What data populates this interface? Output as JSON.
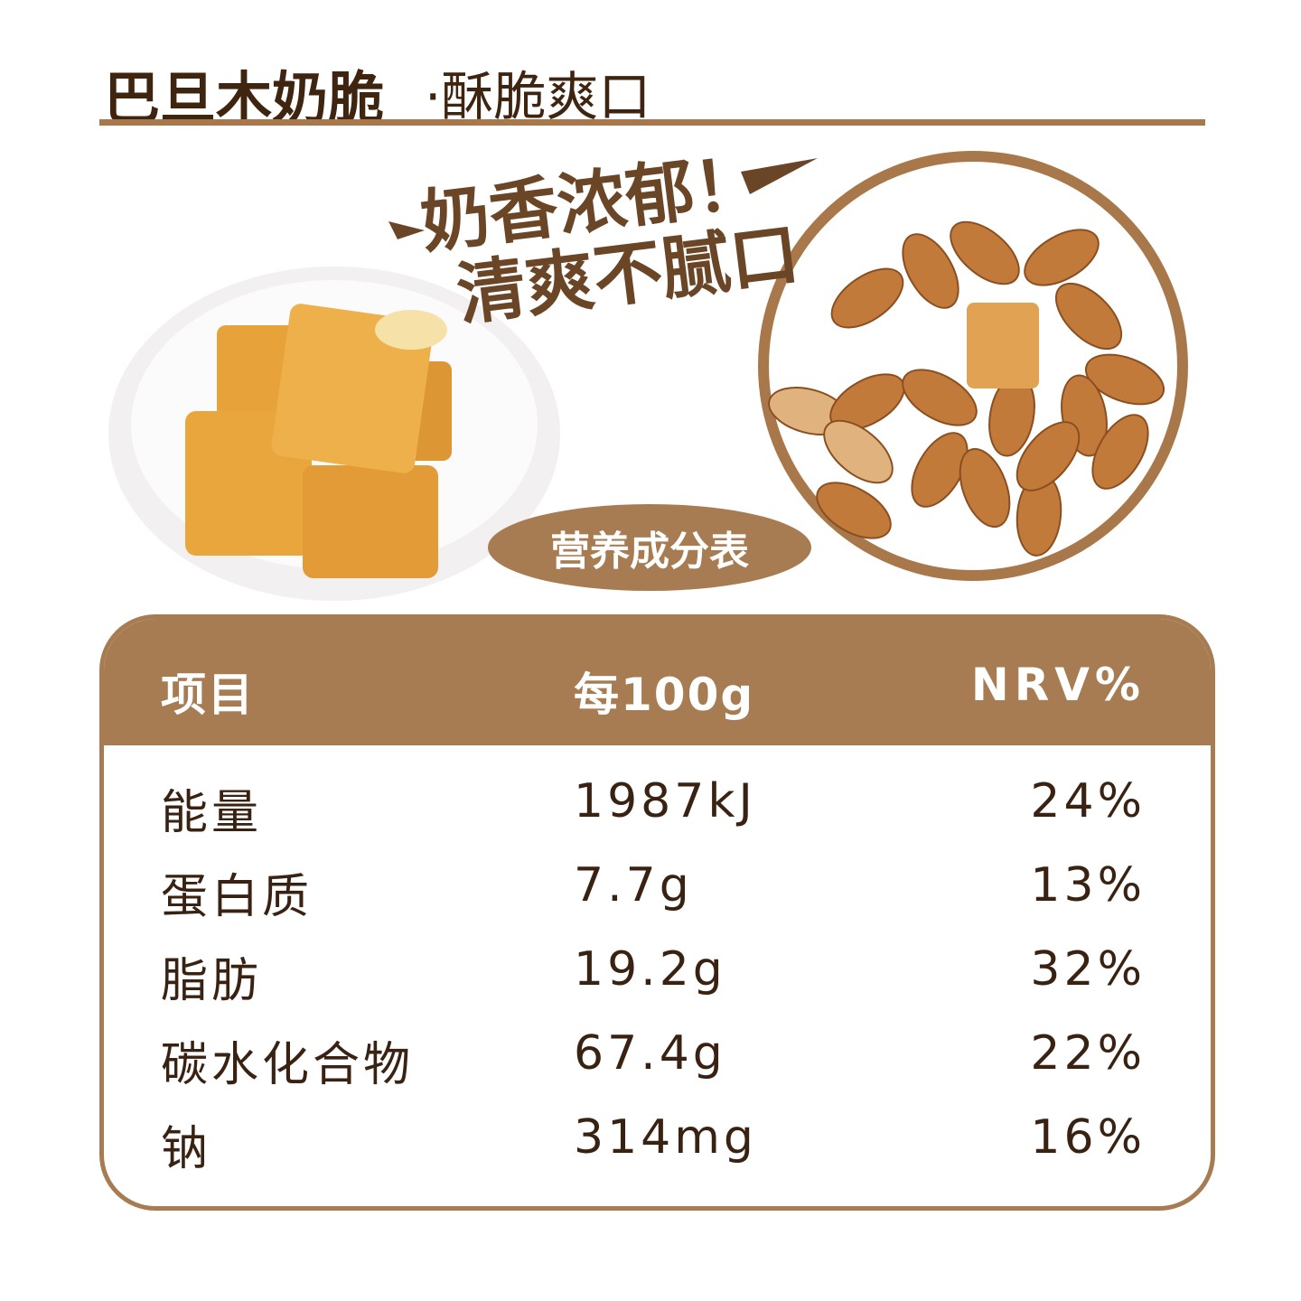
{
  "header": {
    "title": "巴旦木奶脆",
    "subtitle": "·酥脆爽口"
  },
  "slogan": [
    "奶香浓郁！",
    "清爽不腻口"
  ],
  "badge": "营养成分表",
  "table": {
    "headers": [
      "项目",
      "每100g",
      "NRV%"
    ],
    "rows": [
      [
        "能量",
        "1987kJ",
        "24%"
      ],
      [
        "蛋白质",
        "7.7g",
        "13%"
      ],
      [
        "脂肪",
        "19.2g",
        "32%"
      ],
      [
        "碳水化合物",
        "67.4g",
        "22%"
      ],
      [
        "钠",
        "314mg",
        "16%"
      ]
    ]
  }
}
